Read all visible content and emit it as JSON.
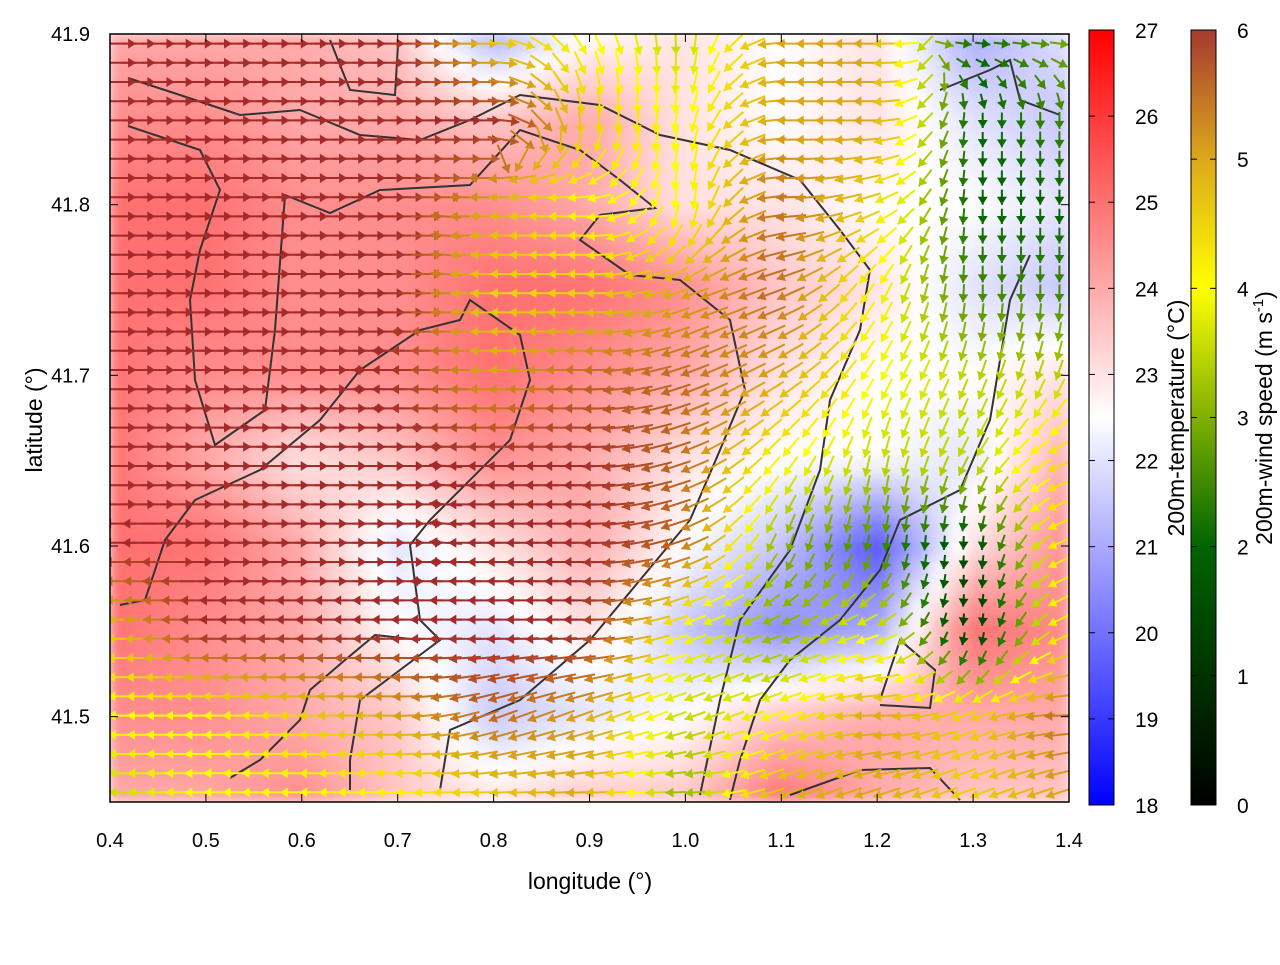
{
  "chart_data": {
    "type": "heatmap",
    "xlabel": "longitude (°)",
    "ylabel": "latitude (°)",
    "xlim": [
      0.4,
      1.4
    ],
    "ylim": [
      41.45,
      41.9
    ],
    "xticks": [
      "0.4",
      "0.5",
      "0.6",
      "0.7",
      "0.8",
      "0.9",
      "1.0",
      "1.1",
      "1.2",
      "1.3",
      "1.4"
    ],
    "yticks": [
      "41.5",
      "41.6",
      "41.7",
      "41.8",
      "41.9"
    ],
    "grid_lon": [
      0.4,
      0.5,
      0.6,
      0.7,
      0.8,
      0.9,
      1.0,
      1.1,
      1.2,
      1.3,
      1.4
    ],
    "grid_lat": [
      41.9,
      41.85,
      41.8,
      41.75,
      41.7,
      41.65,
      41.6,
      41.55,
      41.5,
      41.45
    ],
    "temperature": [
      [
        24,
        24,
        24,
        23.5,
        21,
        22.5,
        23,
        22.5,
        23,
        21,
        22
      ],
      [
        24.5,
        24.5,
        24,
        24,
        23.5,
        24,
        23,
        22.5,
        23,
        22,
        21.5
      ],
      [
        25,
        25,
        24.5,
        24.5,
        24.5,
        24,
        23,
        23,
        22.5,
        22.5,
        22
      ],
      [
        25,
        25,
        24.5,
        24.5,
        25,
        25,
        24.5,
        23.5,
        23,
        22,
        21.5
      ],
      [
        25,
        24.5,
        24.5,
        24.5,
        25,
        24.5,
        24,
        23,
        22.5,
        22.5,
        23
      ],
      [
        25,
        24,
        23,
        23.5,
        24.5,
        24,
        23,
        22.5,
        22.5,
        22,
        24
      ],
      [
        25,
        25,
        24,
        22,
        23,
        24,
        22.5,
        21.5,
        19.5,
        23,
        24.5
      ],
      [
        25,
        24.5,
        24,
        22.5,
        22,
        23,
        21.5,
        20.5,
        21,
        25,
        24.5
      ],
      [
        24.5,
        24.5,
        24,
        23.5,
        21.5,
        22,
        22.5,
        23.5,
        24,
        24,
        24
      ],
      [
        24,
        24,
        24.5,
        23.5,
        23,
        23.5,
        23.5,
        25,
        24,
        23.5,
        23.5
      ]
    ],
    "wind_speed": [
      [
        6,
        6,
        6,
        6,
        4.5,
        4,
        3.5,
        5,
        5,
        2,
        3
      ],
      [
        6,
        6,
        6,
        6,
        6,
        4.5,
        4,
        5,
        5,
        2,
        2.5
      ],
      [
        6,
        6,
        6,
        6,
        5,
        4,
        4,
        5.5,
        4.5,
        2,
        2
      ],
      [
        6,
        6,
        6,
        6,
        4.5,
        4.5,
        5,
        5.5,
        4,
        2.5,
        2.5
      ],
      [
        6,
        6,
        6,
        6,
        5,
        5.5,
        5.5,
        5,
        4,
        3.5,
        3.5
      ],
      [
        6,
        6,
        6,
        6,
        6,
        6,
        5.5,
        4,
        3.5,
        3.5,
        4.5
      ],
      [
        6,
        6,
        6,
        6,
        6,
        6,
        5.5,
        3,
        2.5,
        1.5,
        4.5
      ],
      [
        4.5,
        6,
        6,
        6,
        6,
        6,
        4,
        3,
        4,
        1,
        4.5
      ],
      [
        4,
        4,
        4.5,
        5,
        5.5,
        5,
        3.5,
        4,
        5,
        4.5,
        5.5
      ],
      [
        3.5,
        4,
        4,
        4,
        4.5,
        5,
        3,
        5,
        5,
        4.5,
        5
      ]
    ],
    "wind_direction_deg": [
      [
        0,
        0,
        0,
        0,
        0,
        -60,
        -90,
        180,
        180,
        0,
        0
      ],
      [
        0,
        0,
        0,
        0,
        0,
        -90,
        -100,
        180,
        180,
        -90,
        -90
      ],
      [
        0,
        0,
        0,
        0,
        180,
        180,
        -90,
        180,
        200,
        -90,
        -90
      ],
      [
        0,
        0,
        0,
        0,
        180,
        180,
        200,
        200,
        240,
        -90,
        -90
      ],
      [
        0,
        0,
        0,
        180,
        180,
        180,
        200,
        210,
        240,
        250,
        250
      ],
      [
        0,
        0,
        0,
        0,
        180,
        180,
        200,
        230,
        -100,
        240,
        200
      ],
      [
        180,
        0,
        0,
        0,
        180,
        180,
        200,
        -110,
        -100,
        -90,
        200
      ],
      [
        180,
        180,
        180,
        180,
        180,
        180,
        200,
        200,
        200,
        -90,
        200
      ],
      [
        180,
        180,
        180,
        180,
        200,
        200,
        200,
        200,
        180,
        200,
        180
      ],
      [
        180,
        180,
        180,
        180,
        180,
        180,
        180,
        200,
        200,
        200,
        200
      ]
    ],
    "colorbars": [
      {
        "label": "200m-temperature (°C)",
        "range": [
          18,
          27
        ],
        "ticks": [
          "18",
          "19",
          "20",
          "21",
          "22",
          "23",
          "24",
          "25",
          "26",
          "27"
        ]
      },
      {
        "label": "200m-wind speed (m s",
        "label_sup": "-1",
        "label_end": ")",
        "range": [
          0,
          6
        ],
        "ticks": [
          "0",
          "1",
          "2",
          "3",
          "4",
          "5",
          "6"
        ]
      }
    ]
  }
}
